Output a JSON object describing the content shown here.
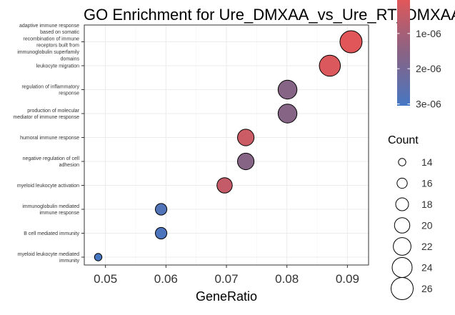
{
  "chart_data": {
    "type": "scatter",
    "title": "GO Enrichment for Ure_DMXAA_vs_Ure_RT_DMXAA",
    "xlabel": "GeneRatio",
    "ylabel": "",
    "xlim": [
      0.0465,
      0.0935
    ],
    "x_ticks": [
      0.05,
      0.06,
      0.07,
      0.08,
      0.09
    ],
    "x_tick_labels": [
      "0.05",
      "0.06",
      "0.07",
      "0.08",
      "0.09"
    ],
    "grid": true,
    "categories": [
      [
        "adaptive immune response",
        "based on somatic",
        "recombination of immune",
        "receptors built from",
        "immunoglobulin superfamily",
        "domains"
      ],
      [
        "leukocyte migration"
      ],
      [
        "regulation of inflammatory",
        "response"
      ],
      [
        "production of molecular",
        "mediator of immune response"
      ],
      [
        "humoral immune response"
      ],
      [
        "negative regulation of cell",
        "adhesion"
      ],
      [
        "myeloid leukocyte activation"
      ],
      [
        "immunoglobulin mediated",
        "immune response"
      ],
      [
        "B cell mediated immunity"
      ],
      [
        "myeloid leukocyte mediated",
        "immunity"
      ]
    ],
    "points": [
      {
        "gene_ratio": 0.0906,
        "count": 26,
        "p_adjust": 5e-08
      },
      {
        "gene_ratio": 0.0871,
        "count": 25,
        "p_adjust": 1.5e-07
      },
      {
        "gene_ratio": 0.0801,
        "count": 23,
        "p_adjust": 1.6e-06
      },
      {
        "gene_ratio": 0.0801,
        "count": 23,
        "p_adjust": 1.6e-06
      },
      {
        "gene_ratio": 0.0732,
        "count": 21,
        "p_adjust": 4e-07
      },
      {
        "gene_ratio": 0.0732,
        "count": 21,
        "p_adjust": 1.6e-06
      },
      {
        "gene_ratio": 0.0697,
        "count": 20,
        "p_adjust": 5e-07
      },
      {
        "gene_ratio": 0.0592,
        "count": 17,
        "p_adjust": 2.8e-06
      },
      {
        "gene_ratio": 0.0592,
        "count": 17,
        "p_adjust": 2.9e-06
      },
      {
        "gene_ratio": 0.0488,
        "count": 14,
        "p_adjust": 3e-06
      }
    ],
    "color_legend": {
      "variable": "p.adjust",
      "range": [
        5e-08,
        3.05e-06
      ],
      "low_color": "#e15759",
      "high_color": "#4477c4",
      "ticks": [
        1e-06,
        2e-06,
        3e-06
      ],
      "tick_labels": [
        "1e-06",
        "2e-06",
        "3e-06"
      ]
    },
    "size_legend": {
      "title": "Count",
      "values": [
        14,
        16,
        18,
        20,
        22,
        24,
        26
      ],
      "labels": [
        "14",
        "16",
        "18",
        "20",
        "22",
        "24",
        "26"
      ]
    }
  }
}
